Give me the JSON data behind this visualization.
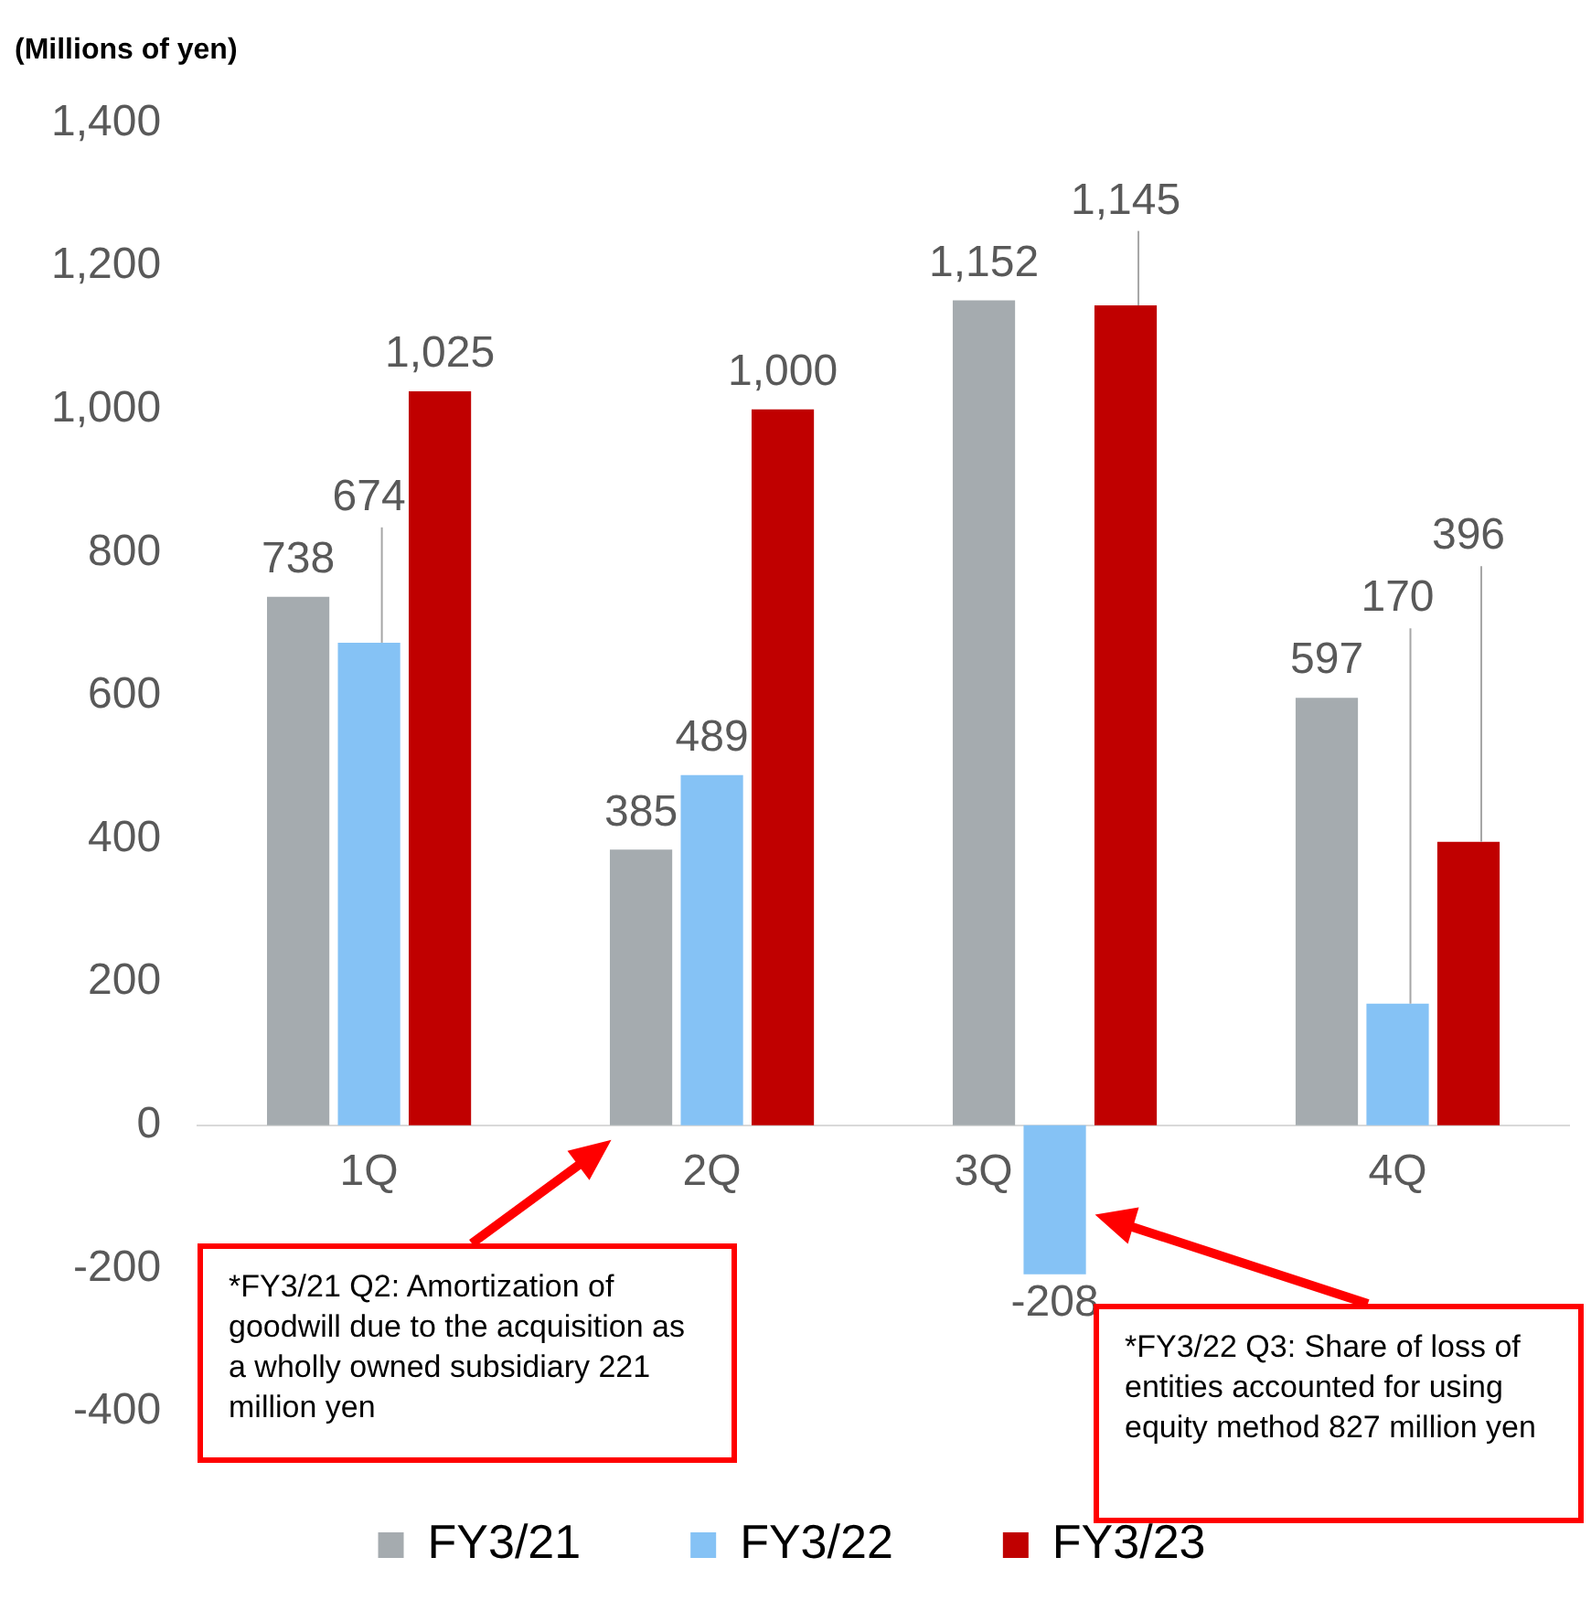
{
  "chart_data": {
    "type": "bar",
    "ylabel": "(Millions of yen)",
    "categories": [
      "1Q",
      "2Q",
      "3Q",
      "4Q"
    ],
    "series": [
      {
        "name": "FY3/21",
        "color": "#a5abaf",
        "values": [
          738,
          385,
          1152,
          597
        ],
        "value_labels": [
          "738",
          "385",
          "1,152",
          "597"
        ]
      },
      {
        "name": "FY3/22",
        "color": "#85c2f5",
        "values": [
          674,
          489,
          -208,
          170
        ],
        "value_labels": [
          "674",
          "489",
          "-208",
          "170"
        ]
      },
      {
        "name": "FY3/23",
        "color": "#c00000",
        "values": [
          1025,
          1000,
          1145,
          396
        ],
        "value_labels": [
          "1,025",
          "1,000",
          "1,145",
          "396"
        ]
      }
    ],
    "ylim": [
      -400,
      1400
    ],
    "yticks": [
      -400,
      -200,
      0,
      200,
      400,
      600,
      800,
      {
        "value": 1000,
        "label": "1,000"
      },
      {
        "value": 1200,
        "label": "1,200"
      },
      {
        "value": 1400,
        "label": "1,400"
      }
    ],
    "grid": false,
    "legend": "bottom",
    "annotations": [
      "*FY3/21 Q2: Amortization of goodwill due to the acquisition as a wholly owned subsidiary 221 million yen",
      "*FY3/22 Q3: Share of loss of entities accounted for using equity method 827 million yen"
    ]
  }
}
